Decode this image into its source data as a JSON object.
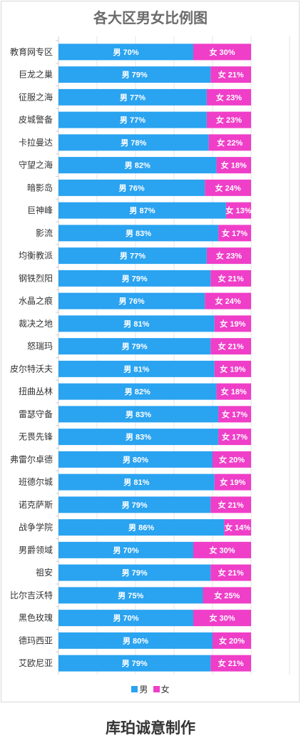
{
  "chart_data": {
    "type": "bar",
    "stacked": true,
    "orientation": "horizontal",
    "title": "各大区男女比例图",
    "categories": [
      "教育网专区",
      "巨龙之巢",
      "征服之海",
      "皮城警备",
      "卡拉曼达",
      "守望之海",
      "暗影岛",
      "巨神峰",
      "影流",
      "均衡教派",
      "钢铁烈阳",
      "水晶之痕",
      "裁决之地",
      "怒瑞玛",
      "皮尔特沃夫",
      "扭曲丛林",
      "雷瑟守备",
      "无畏先锋",
      "弗雷尔卓德",
      "班德尔城",
      "诺克萨斯",
      "战争学院",
      "男爵领域",
      "祖安",
      "比尔吉沃特",
      "黑色玫瑰",
      "德玛西亚",
      "艾欧尼亚"
    ],
    "series": [
      {
        "name": "男",
        "color": "#2aa3f0",
        "values": [
          70,
          79,
          77,
          77,
          78,
          82,
          76,
          87,
          83,
          77,
          79,
          76,
          81,
          79,
          81,
          82,
          83,
          83,
          80,
          81,
          79,
          86,
          70,
          79,
          75,
          70,
          80,
          79
        ]
      },
      {
        "name": "女",
        "color": "#ef3ec8",
        "values": [
          30,
          21,
          23,
          23,
          22,
          18,
          24,
          13,
          17,
          23,
          21,
          24,
          19,
          21,
          19,
          18,
          17,
          17,
          20,
          19,
          21,
          14,
          30,
          21,
          25,
          30,
          20,
          21
        ]
      }
    ],
    "xlim": [
      0,
      100
    ],
    "legend_position": "bottom",
    "grid": true
  },
  "footer": "库珀诚意制作"
}
